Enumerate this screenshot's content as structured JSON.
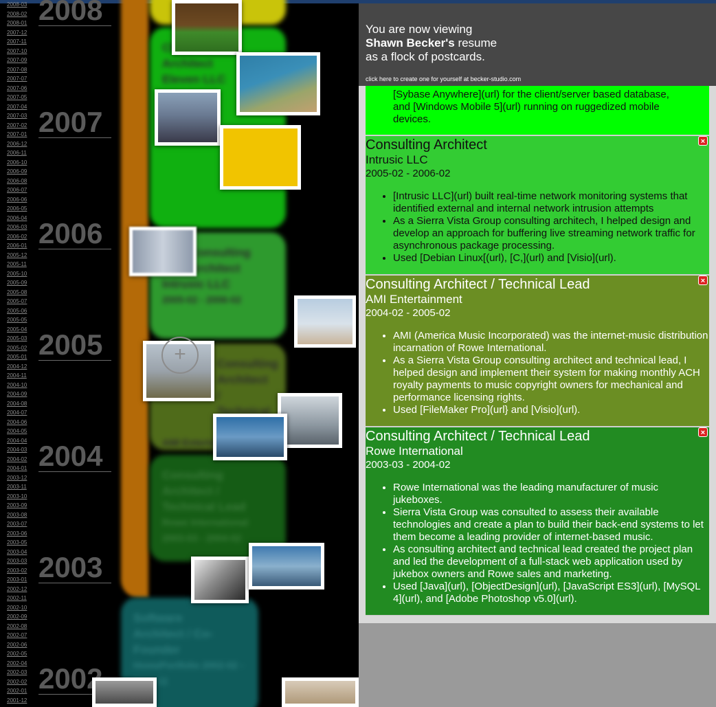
{
  "axis": {
    "years": [
      "2008",
      "2007",
      "2006",
      "2005",
      "2004",
      "2003",
      "2002"
    ],
    "months": [
      "2008-03",
      "2008-02",
      "2008-01",
      "2007-12",
      "2007-11",
      "2007-10",
      "2007-09",
      "2007-08",
      "2007-07",
      "2007-06",
      "2007-05",
      "2007-04",
      "2007-03",
      "2007-02",
      "2007-01",
      "2006-12",
      "2006-11",
      "2006-10",
      "2006-09",
      "2006-08",
      "2006-07",
      "2006-06",
      "2006-05",
      "2006-04",
      "2006-03",
      "2006-02",
      "2006-01",
      "2005-12",
      "2005-11",
      "2005-10",
      "2005-09",
      "2005-08",
      "2005-07",
      "2005-06",
      "2005-05",
      "2005-04",
      "2005-03",
      "2005-02",
      "2005-01",
      "2004-12",
      "2004-11",
      "2004-10",
      "2004-09",
      "2004-08",
      "2004-07",
      "2004-06",
      "2004-05",
      "2004-04",
      "2004-03",
      "2004-02",
      "2004-01",
      "2003-12",
      "2003-11",
      "2003-10",
      "2003-09",
      "2003-08",
      "2003-07",
      "2003-06",
      "2003-05",
      "2003-04",
      "2003-03",
      "2003-02",
      "2003-01",
      "2002-12",
      "2002-11",
      "2002-10",
      "2002-09",
      "2002-08",
      "2002-07",
      "2002-06",
      "2002-05",
      "2002-04",
      "2002-03",
      "2002-02",
      "2002-01",
      "2001-12"
    ]
  },
  "timeline_cards": [
    {
      "line1": "Chief",
      "line2": "Architect",
      "line3": "Eleven LLC",
      "line4": ""
    },
    {
      "line1": "Consulting",
      "line2": "Architect",
      "line3": "Intrusic LLC",
      "line4": "2005-02 - 2006-02"
    },
    {
      "line1": "Consulting",
      "line2": "Architect /",
      "line3": "Technical Lead",
      "line4": "AMI Entertainment 2004-02"
    },
    {
      "line1": "Consulting",
      "line2": "Architect /",
      "line3": "Technical Lead",
      "line4": "Rowe International 2003-03 - 2004-02"
    },
    {
      "line1": "Software",
      "line2": "Architect / Co-",
      "line3": "Founder",
      "line4": "HomePortfolio 2002-02 - 2003-11"
    }
  ],
  "header": {
    "line1": "You are now viewing",
    "name": "Shawn Becker's",
    "line2_rest": " resume",
    "line3": "as a flock of postcards.",
    "link": "click here to create one for yourself at becker-studio.com"
  },
  "top_fragment": {
    "text1": "[Sybase Anywhere](url) for the client/server based database,",
    "text2": "and [Windows Mobile 5](url) running on ruggedized mobile",
    "text3": "devices."
  },
  "entries": [
    {
      "title": "Consulting Architect",
      "company": "Intrusic LLC",
      "dates": "2005-02 - 2006-02",
      "color": "#33cc33",
      "bullets": [
        "[Intrusic LLC](url) built real-time network monitoring systems that identified external and internal network intrusion attempts",
        "As a Sierra Vista Group consulting architech, I helped design and develop an approach for buffering live streaming network traffic for asynchronous package processing.",
        "Used [Debian Linux[(url), [C,](url) and [Visio](url)."
      ]
    },
    {
      "title": "Consulting Architect / Technical Lead",
      "company": "AMI Entertainment",
      "dates": "2004-02 - 2005-02",
      "color": "#6b8e23",
      "bullets": [
        "AMI (America Music Incorporated) was the internet-music distribution incarnation of Rowe International.",
        "As a Sierra Vista Group consulting architect and technical lead, I helped design and implement their system for making monthly ACH royalty payments to music copyright owners for mechanical and performance licensing rights.",
        "Used [FileMaker Pro](url} and [Visio](url)."
      ]
    },
    {
      "title": "Consulting Architect / Technical Lead",
      "company": "Rowe International",
      "dates": "2003-03 - 2004-02",
      "color": "#228b22",
      "bullets": [
        "Rowe International was the leading manufacturer of music jukeboxes.",
        "Sierra Vista Group was consulted to assess their available technologies and create a plan to build their back-end systems to let them become a leading provider of internet-based music.",
        "As consulting architect and technical lead created the project plan and led the development of a full-stack web application used by jukebox owners and Rowe sales and marketing.",
        "Used [Java](url), [ObjectDesign](url), [JavaScript ES3](url), [MySQL 4](url), and [Adobe Photoshop v5.0](url)."
      ]
    }
  ],
  "colors": {
    "top_fragment": "#00ff00",
    "header": "#474747"
  }
}
